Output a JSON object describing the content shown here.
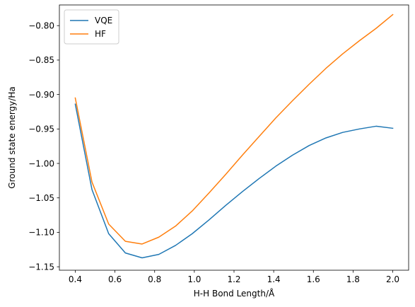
{
  "chart_data": {
    "type": "line",
    "xlabel": "H-H Bond Length/Å",
    "ylabel": "Ground state energy/Ha",
    "xlim": [
      0.32,
      2.08
    ],
    "ylim": [
      -1.155,
      -0.77
    ],
    "xticks": [
      0.4,
      0.6,
      0.8,
      1.0,
      1.2,
      1.4,
      1.6,
      1.8,
      2.0
    ],
    "xtick_labels": [
      "0.4",
      "0.6",
      "0.8",
      "1.0",
      "1.2",
      "1.4",
      "1.6",
      "1.8",
      "2.0"
    ],
    "yticks": [
      -1.15,
      -1.1,
      -1.05,
      -1.0,
      -0.95,
      -0.9,
      -0.85,
      -0.8
    ],
    "ytick_labels": [
      "−1.15",
      "−1.10",
      "−1.05",
      "−1.00",
      "−0.95",
      "−0.90",
      "−0.85",
      "−0.80"
    ],
    "grid": false,
    "legend_position": "top-left",
    "x": [
      0.4,
      0.4842,
      0.5684,
      0.6526,
      0.7368,
      0.8211,
      0.9053,
      0.9895,
      1.0737,
      1.1579,
      1.2421,
      1.3263,
      1.4105,
      1.4947,
      1.5789,
      1.6632,
      1.7474,
      1.8316,
      1.9158,
      2.0
    ],
    "series": [
      {
        "name": "VQE",
        "color": "#1f77b4",
        "values": [
          -0.914,
          -1.038,
          -1.102,
          -1.13,
          -1.137,
          -1.132,
          -1.119,
          -1.102,
          -1.082,
          -1.061,
          -1.041,
          -1.022,
          -1.004,
          -0.988,
          -0.974,
          -0.963,
          -0.955,
          -0.95,
          -0.946,
          -0.949
        ]
      },
      {
        "name": "HF",
        "color": "#ff7f0e",
        "values": [
          -0.905,
          -1.027,
          -1.088,
          -1.113,
          -1.117,
          -1.107,
          -1.091,
          -1.069,
          -1.043,
          -1.016,
          -0.988,
          -0.961,
          -0.934,
          -0.909,
          -0.885,
          -0.862,
          -0.841,
          -0.822,
          -0.804,
          -0.784
        ]
      }
    ]
  }
}
